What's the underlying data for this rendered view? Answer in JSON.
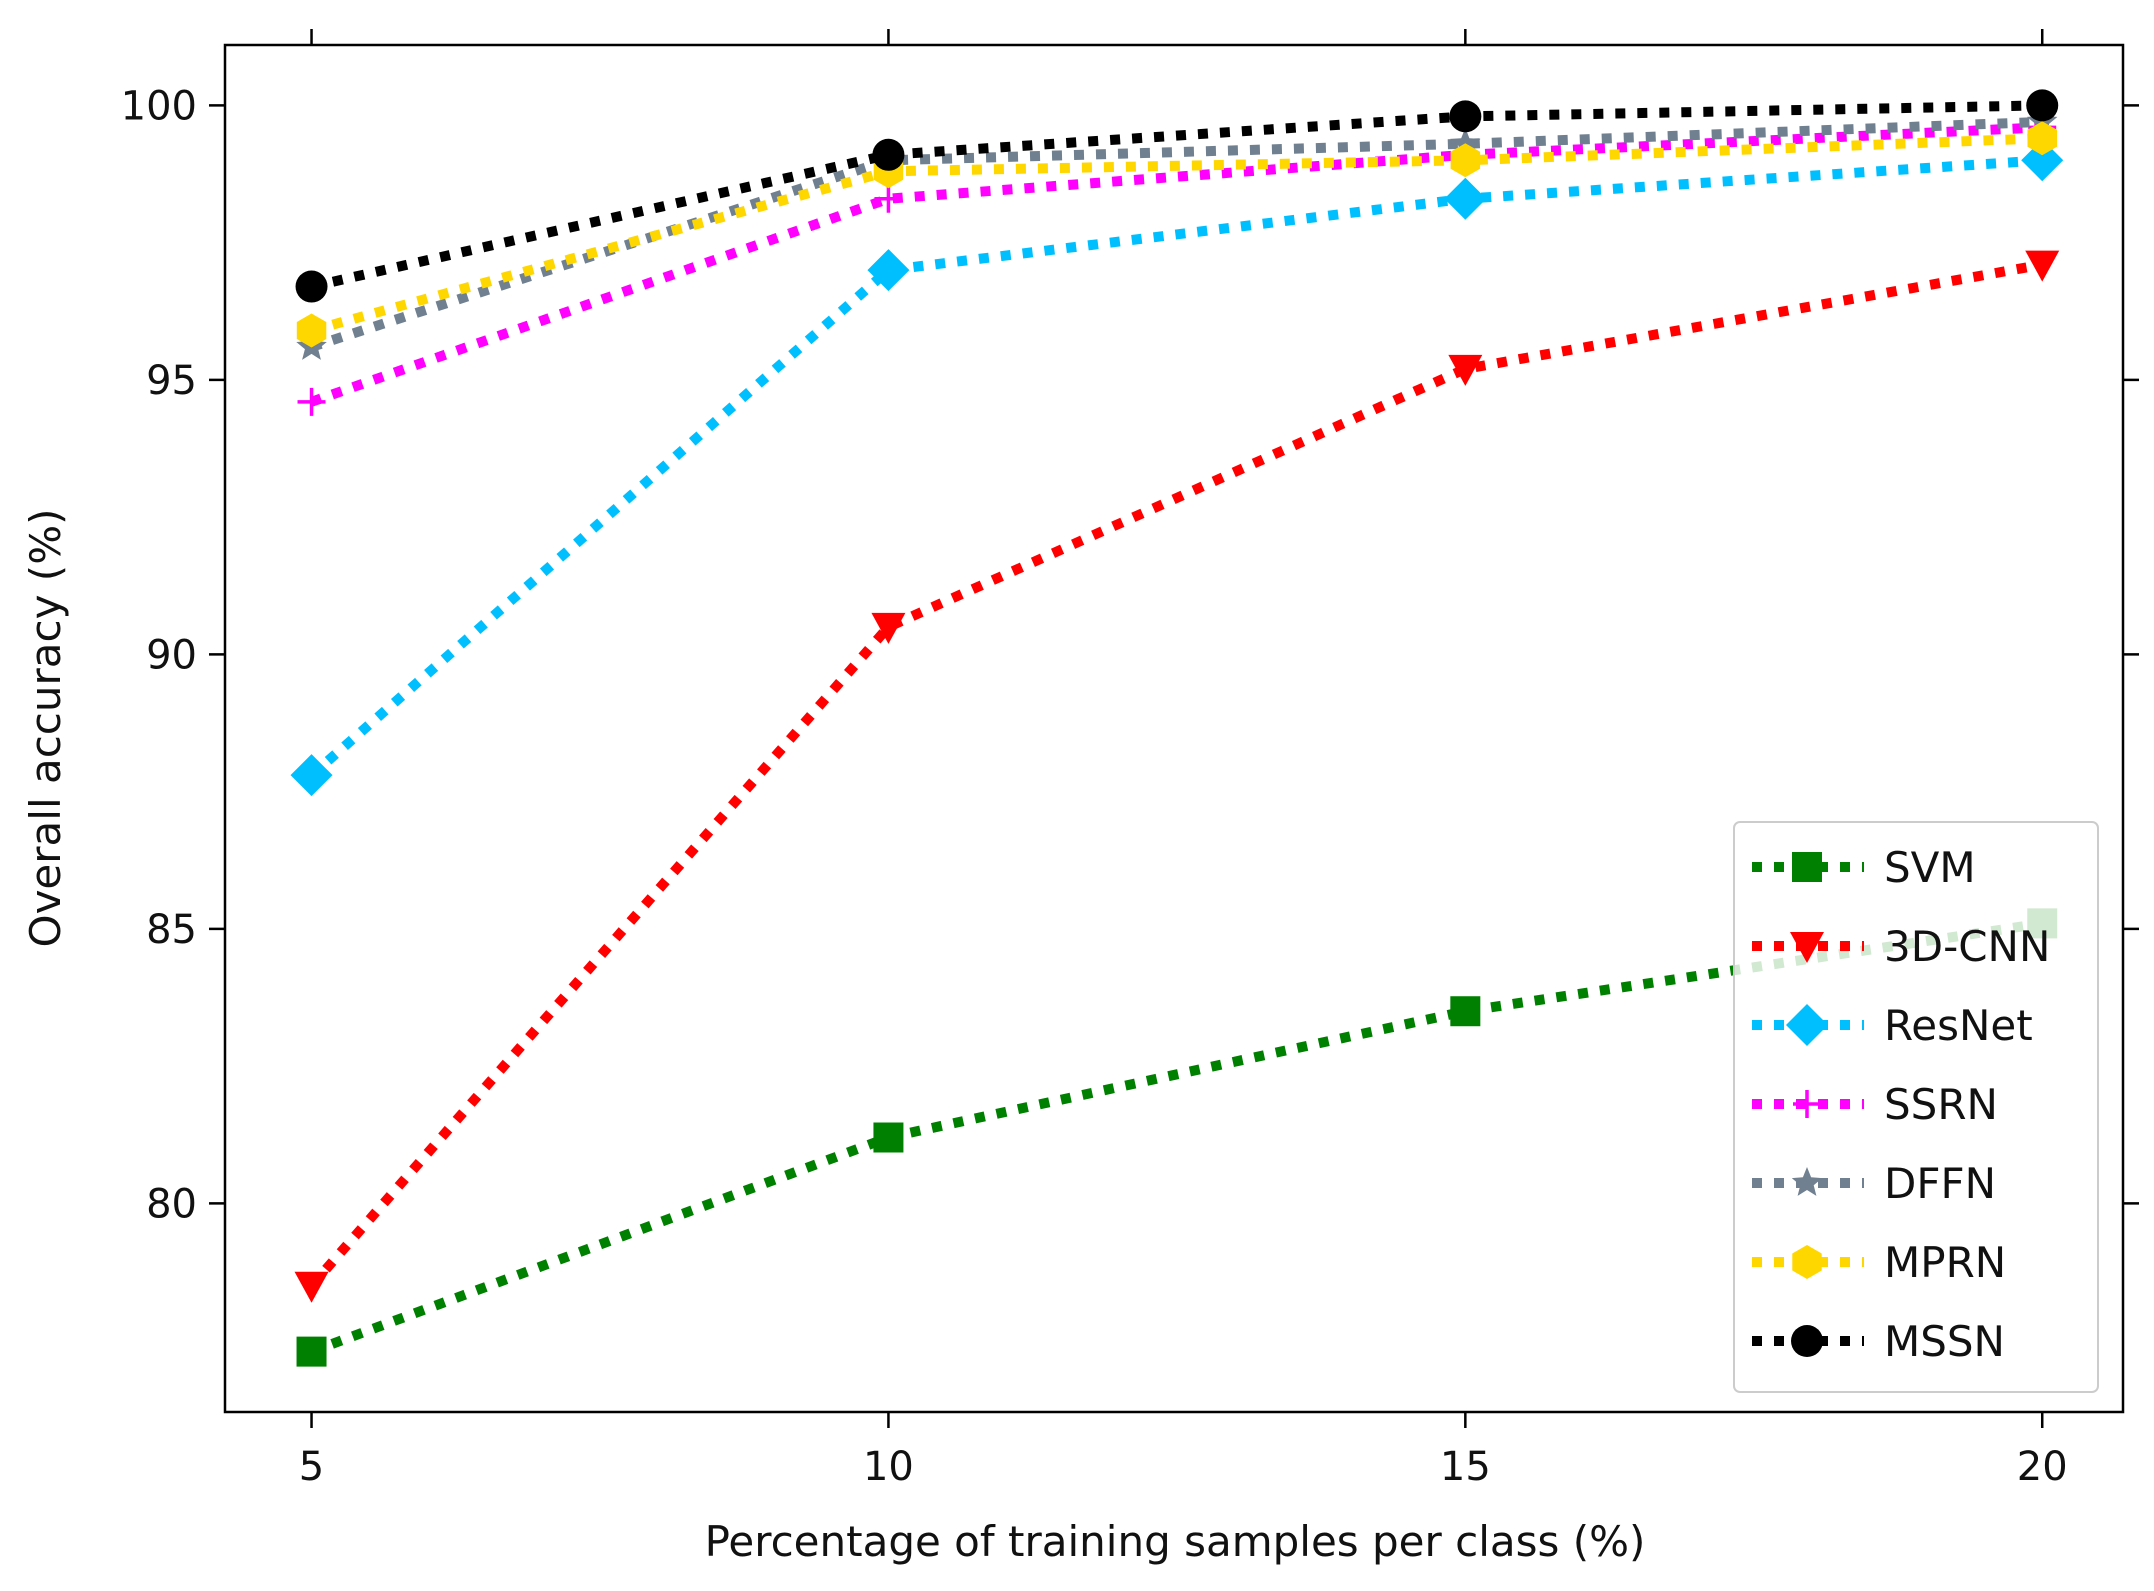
{
  "chart_data": {
    "type": "line",
    "title": "",
    "xlabel": "Percentage of training samples per class (%)",
    "ylabel": "Overall accuracy (%)",
    "x": [
      5,
      10,
      15,
      20
    ],
    "x_ticks": [
      "5",
      "10",
      "15",
      "20"
    ],
    "y_ticks": [
      "80",
      "85",
      "90",
      "95",
      "100"
    ],
    "xlim": [
      4.25,
      20.7
    ],
    "ylim": [
      76.2,
      101.1
    ],
    "grid": false,
    "legend_position": "lower-right",
    "series": [
      {
        "name": "SVM",
        "values": [
          77.3,
          81.2,
          83.5,
          85.1
        ],
        "color": "#008000",
        "marker": "square"
      },
      {
        "name": "3D-CNN",
        "values": [
          78.5,
          90.5,
          95.2,
          97.1
        ],
        "color": "#ff0000",
        "marker": "triangle-down"
      },
      {
        "name": "ResNet",
        "values": [
          87.8,
          97.0,
          98.3,
          99.0
        ],
        "color": "#00bfff",
        "marker": "diamond"
      },
      {
        "name": "SSRN",
        "values": [
          94.6,
          98.3,
          99.1,
          99.6
        ],
        "color": "#ff00ff",
        "marker": "plus"
      },
      {
        "name": "DFFN",
        "values": [
          95.6,
          99.0,
          99.3,
          99.7
        ],
        "color": "#708090",
        "marker": "star"
      },
      {
        "name": "MPRN",
        "values": [
          95.9,
          98.8,
          99.0,
          99.4
        ],
        "color": "#ffd700",
        "marker": "hexagon"
      },
      {
        "name": "MSSN",
        "values": [
          96.7,
          99.1,
          99.8,
          100.0
        ],
        "color": "#000000",
        "marker": "circle"
      }
    ]
  }
}
